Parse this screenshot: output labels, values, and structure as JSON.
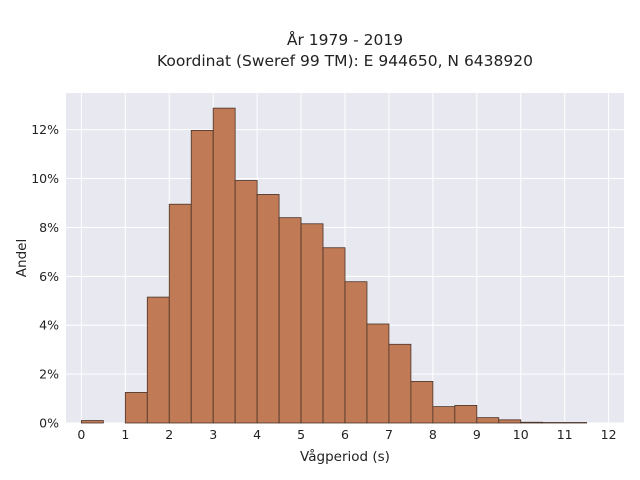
{
  "chart_data": {
    "type": "bar",
    "title": "År 1979 - 2019",
    "subtitle": "Koordinat (Sweref 99 TM): E 944650, N 6438920",
    "xlabel": "Vågperiod (s)",
    "ylabel": "Andel",
    "bin_width": 0.5,
    "bins": [
      {
        "x0": 0.0,
        "value": 0.1
      },
      {
        "x0": 0.5,
        "value": 0.0
      },
      {
        "x0": 1.0,
        "value": 1.25
      },
      {
        "x0": 1.5,
        "value": 5.15
      },
      {
        "x0": 2.0,
        "value": 8.95
      },
      {
        "x0": 2.5,
        "value": 11.97
      },
      {
        "x0": 3.0,
        "value": 12.88
      },
      {
        "x0": 3.5,
        "value": 9.92
      },
      {
        "x0": 4.0,
        "value": 9.35
      },
      {
        "x0": 4.5,
        "value": 8.4
      },
      {
        "x0": 5.0,
        "value": 8.15
      },
      {
        "x0": 5.5,
        "value": 7.17
      },
      {
        "x0": 6.0,
        "value": 5.78
      },
      {
        "x0": 6.5,
        "value": 4.05
      },
      {
        "x0": 7.0,
        "value": 3.22
      },
      {
        "x0": 7.5,
        "value": 1.7
      },
      {
        "x0": 8.0,
        "value": 0.67
      },
      {
        "x0": 8.5,
        "value": 0.72
      },
      {
        "x0": 9.0,
        "value": 0.22
      },
      {
        "x0": 9.5,
        "value": 0.13
      },
      {
        "x0": 10.0,
        "value": 0.03
      },
      {
        "x0": 10.5,
        "value": 0.02
      },
      {
        "x0": 11.0,
        "value": 0.02
      }
    ],
    "xlim": [
      -0.35,
      12.35
    ],
    "ylim": [
      0,
      13.5
    ],
    "xticks": [
      0,
      1,
      2,
      3,
      4,
      5,
      6,
      7,
      8,
      9,
      10,
      11,
      12
    ],
    "xtick_labels": [
      "0",
      "1",
      "2",
      "3",
      "4",
      "5",
      "6",
      "7",
      "8",
      "9",
      "10",
      "11",
      "12"
    ],
    "yticks": [
      0,
      2,
      4,
      6,
      8,
      10,
      12
    ],
    "ytick_labels": [
      "0%",
      "2%",
      "4%",
      "6%",
      "8%",
      "10%",
      "12%"
    ],
    "grid": true,
    "colors": {
      "bar_fill": "#c07a55",
      "bar_edge": "#4a3328",
      "plot_bg": "#e8e8f0",
      "grid": "#ffffff"
    }
  }
}
